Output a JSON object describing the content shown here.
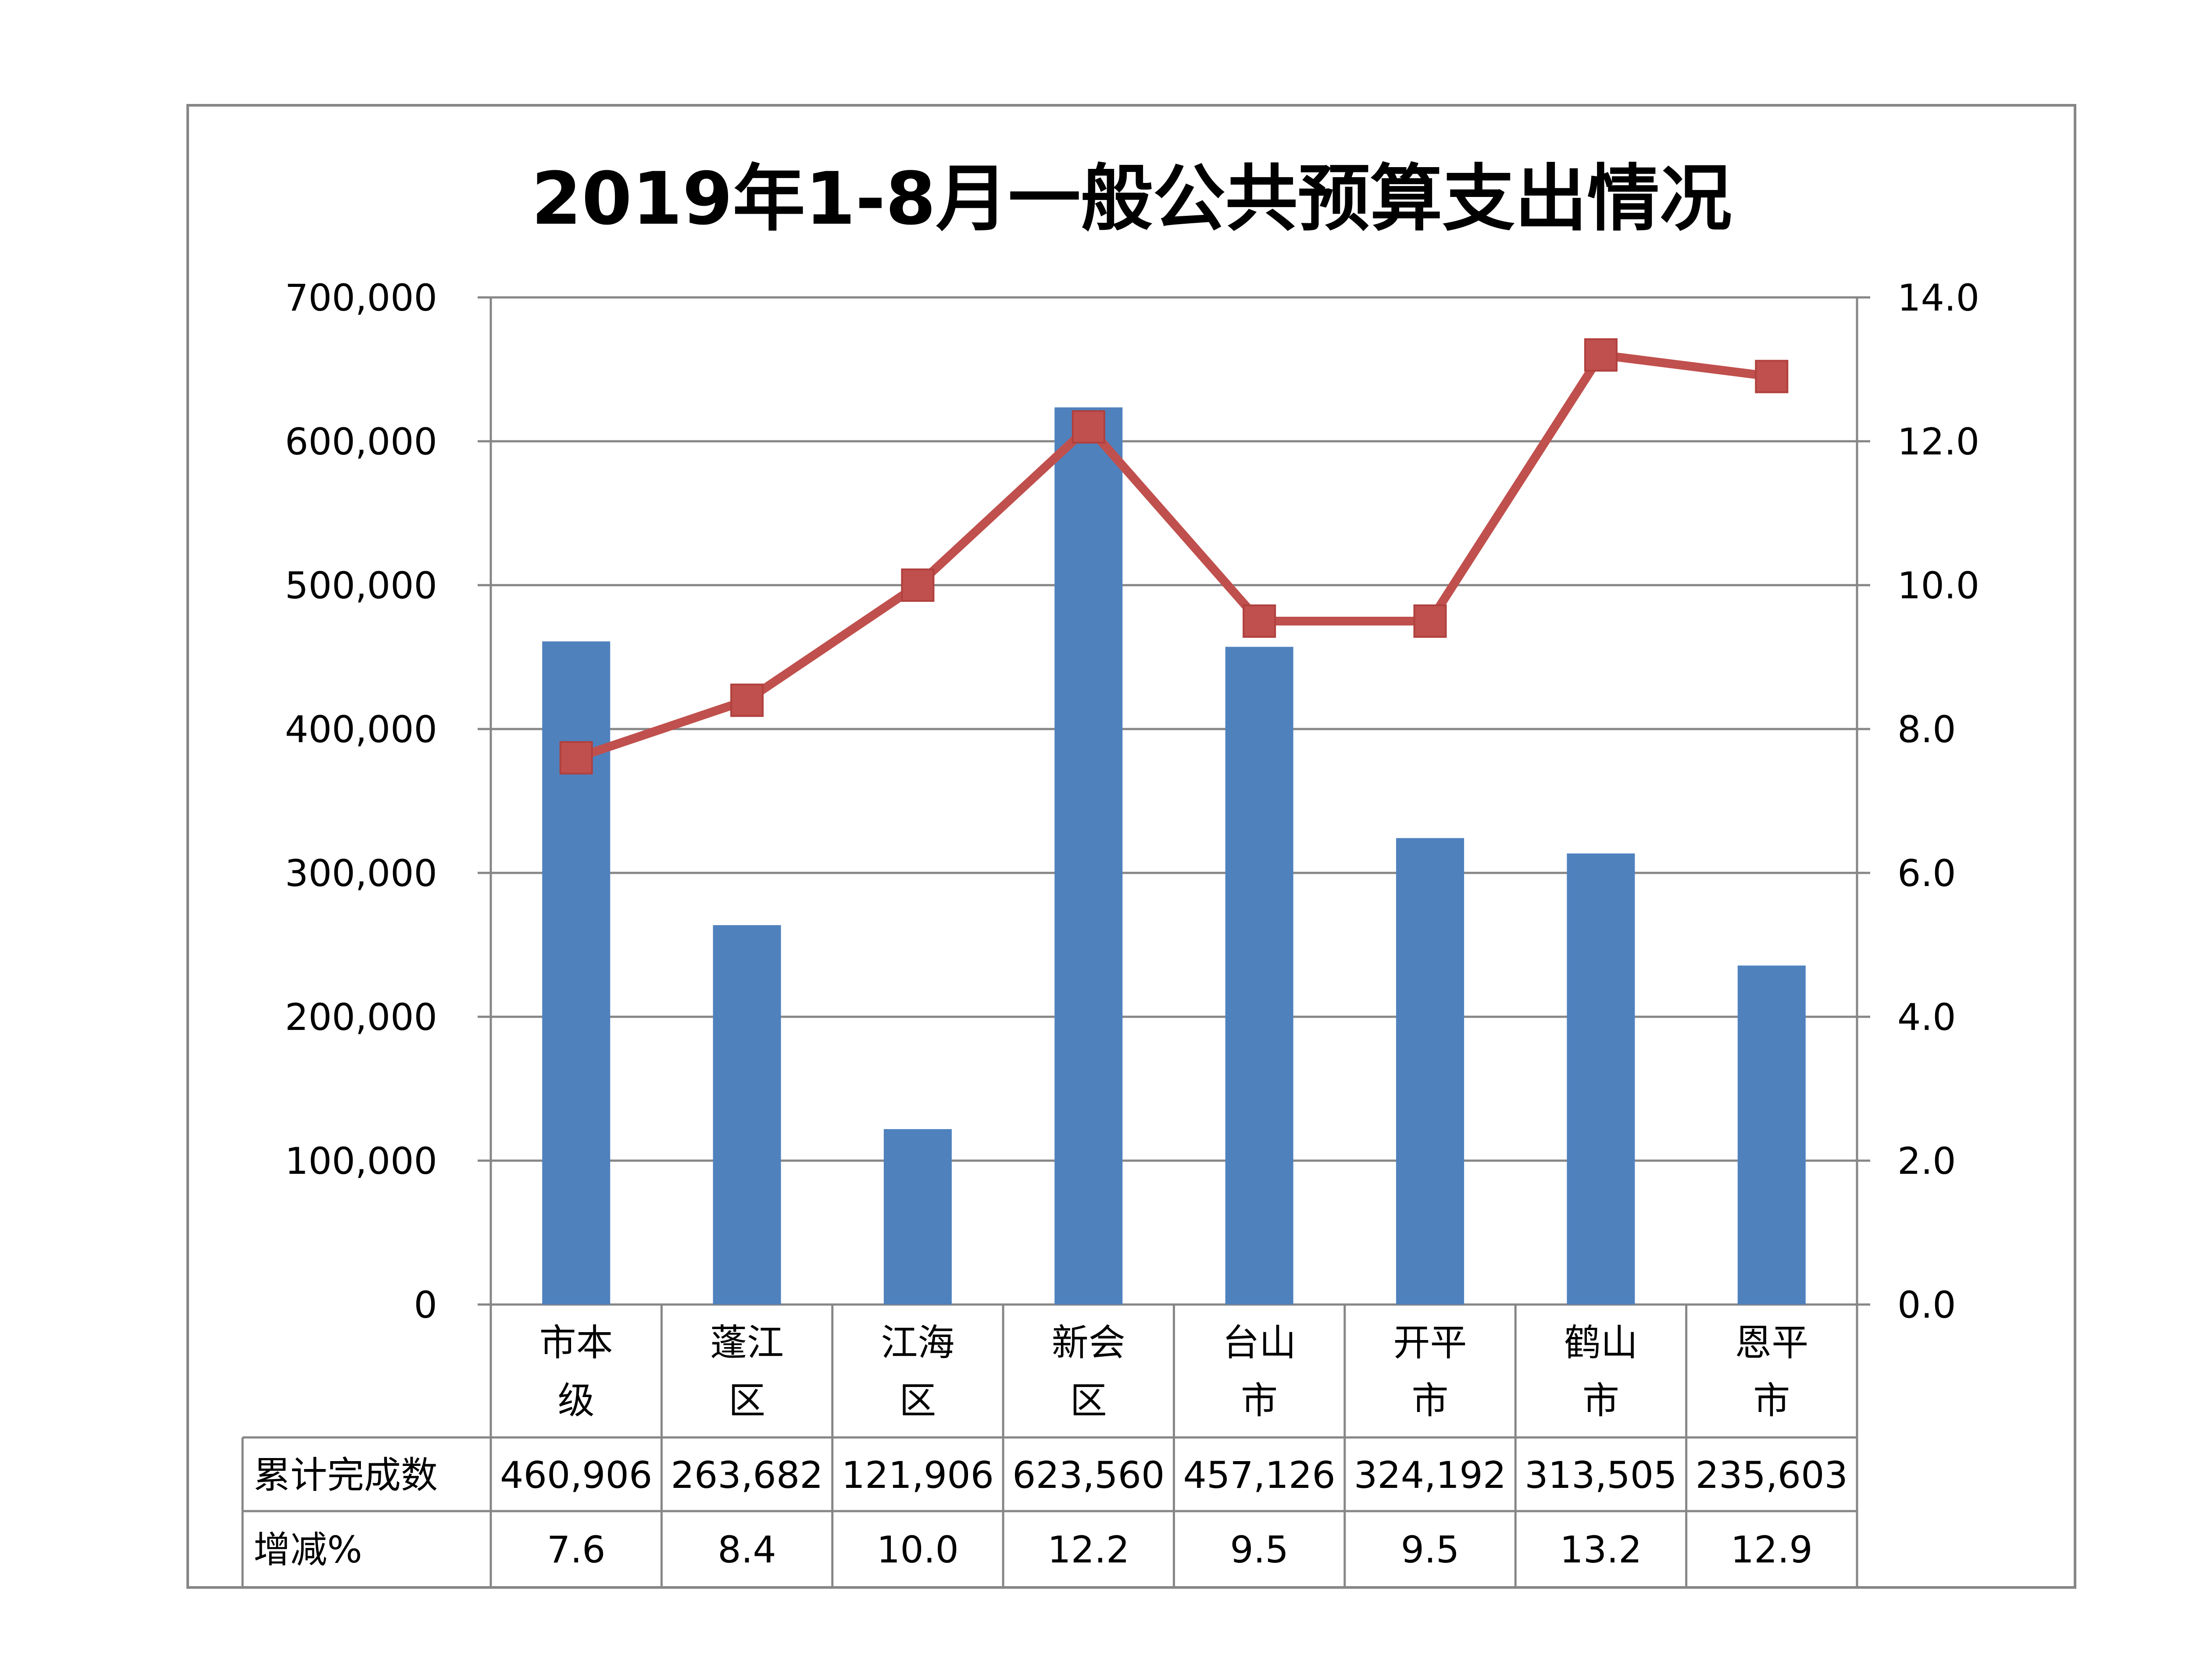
{
  "chart_data": {
    "type": "bar+line",
    "title": "2019年1-8月一般公共预算支出情况",
    "categories": [
      "市本级",
      "蓬江区",
      "江海区",
      "新会区",
      "台山市",
      "开平市",
      "鹤山市",
      "恩平市"
    ],
    "category_lines": [
      [
        "市本",
        "级"
      ],
      [
        "蓬江",
        "区"
      ],
      [
        "江海",
        "区"
      ],
      [
        "新会",
        "区"
      ],
      [
        "台山",
        "市"
      ],
      [
        "开平",
        "市"
      ],
      [
        "鹤山",
        "市"
      ],
      [
        "恩平",
        "市"
      ]
    ],
    "series": [
      {
        "name": "累计完成数",
        "type": "bar",
        "axis": "left",
        "color": "#4f81bd",
        "values": [
          460906,
          263682,
          121906,
          623560,
          457126,
          324192,
          313505,
          235603
        ],
        "labels": [
          "460,906",
          "263,682",
          "121,906",
          "623,560",
          "457,126",
          "324,192",
          "313,505",
          "235,603"
        ]
      },
      {
        "name": "增减%",
        "type": "line",
        "axis": "right",
        "color": "#c0504d",
        "marker": "square",
        "values": [
          7.6,
          8.4,
          10.0,
          12.2,
          9.5,
          9.5,
          13.2,
          12.9
        ],
        "labels": [
          "7.6",
          "8.4",
          "10.0",
          "12.2",
          "9.5",
          "9.5",
          "13.2",
          "12.9"
        ]
      }
    ],
    "y_left": {
      "lim": [
        0,
        700000
      ],
      "ticks": [
        "0",
        "100,000",
        "200,000",
        "300,000",
        "400,000",
        "500,000",
        "600,000",
        "700,000"
      ]
    },
    "y_right": {
      "lim": [
        0,
        14
      ],
      "ticks": [
        "0.0",
        "2.0",
        "4.0",
        "6.0",
        "8.0",
        "10.0",
        "12.0",
        "14.0"
      ]
    },
    "grid": true,
    "legend": "data table below chart"
  }
}
